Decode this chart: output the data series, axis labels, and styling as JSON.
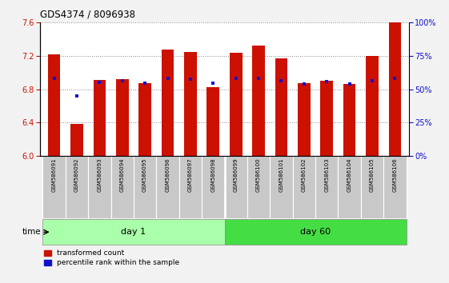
{
  "title": "GDS4374 / 8096938",
  "samples": [
    "GSM586091",
    "GSM586092",
    "GSM586093",
    "GSM586094",
    "GSM586095",
    "GSM586096",
    "GSM586097",
    "GSM586098",
    "GSM586099",
    "GSM586100",
    "GSM586101",
    "GSM586102",
    "GSM586103",
    "GSM586104",
    "GSM586105",
    "GSM586106"
  ],
  "red_values": [
    7.22,
    6.38,
    6.91,
    6.92,
    6.87,
    7.28,
    7.25,
    6.82,
    7.24,
    7.32,
    7.17,
    6.87,
    6.9,
    6.86,
    7.2,
    7.6
  ],
  "blue_values": [
    6.93,
    6.72,
    6.88,
    6.9,
    6.87,
    6.93,
    6.92,
    6.87,
    6.93,
    6.93,
    6.9,
    6.86,
    6.89,
    6.86,
    6.9,
    6.93
  ],
  "day1_indices": [
    0,
    1,
    2,
    3,
    4,
    5,
    6,
    7
  ],
  "day60_indices": [
    8,
    9,
    10,
    11,
    12,
    13,
    14,
    15
  ],
  "ylim_left": [
    6.0,
    7.6
  ],
  "ylim_right": [
    0,
    100
  ],
  "yticks_left": [
    6.0,
    6.4,
    6.8,
    7.2,
    7.6
  ],
  "yticks_right": [
    0,
    25,
    50,
    75,
    100
  ],
  "red_color": "#CC1100",
  "blue_color": "#1111CC",
  "bar_width": 0.55,
  "bg_plot": "#FFFFFF",
  "bg_xlabel": "#C8C8C8",
  "day1_color": "#AAFFAA",
  "day60_color": "#44DD44",
  "time_arrow_label": "time",
  "day1_label": "day 1",
  "day60_label": "day 60",
  "legend_red": "transformed count",
  "legend_blue": "percentile rank within the sample",
  "grid_style": "dotted",
  "grid_color": "#888888",
  "fig_bg": "#F2F2F2"
}
